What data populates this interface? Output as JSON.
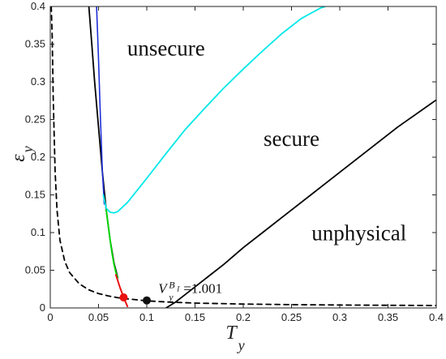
{
  "chart_data": {
    "type": "line",
    "title": "",
    "xlabel": "T",
    "xlabel_sub": "y",
    "ylabel": "ε",
    "ylabel_sub": "y",
    "xlim": [
      0,
      0.4
    ],
    "ylim": [
      0,
      0.4
    ],
    "xticks": [
      0,
      0.05,
      0.1,
      0.15,
      0.2,
      0.25,
      0.3,
      0.35,
      0.4
    ],
    "xtick_labels": [
      "0",
      "0.05",
      "0.1",
      "0.15",
      "0.2",
      "0.25",
      "0.3",
      "0.35",
      "0.4"
    ],
    "yticks": [
      0,
      0.05,
      0.1,
      0.15,
      0.2,
      0.25,
      0.3,
      0.35,
      0.4
    ],
    "ytick_labels": [
      "0",
      "0.05",
      "0.1",
      "0.15",
      "0.2",
      "0.25",
      "0.3",
      "0.35",
      "0.4"
    ],
    "grid": false,
    "regions": [
      {
        "label": "unsecure",
        "x": 0.12,
        "y": 0.335
      },
      {
        "label": "secure",
        "x": 0.25,
        "y": 0.215
      },
      {
        "label": "unphysical",
        "x": 0.32,
        "y": 0.09
      }
    ],
    "annotation": {
      "main": "V",
      "sup": "B",
      "sup_sub": "I",
      "sub": "y",
      "value": "=1.001",
      "x": 0.112,
      "y": 0.02
    },
    "series": [
      {
        "color": "#000000",
        "dash": "6,5",
        "width": 1.8,
        "x": [
          0.001,
          0.002,
          0.003,
          0.005,
          0.007,
          0.01,
          0.015,
          0.02,
          0.03,
          0.04,
          0.05,
          0.06,
          0.07,
          0.08,
          0.1,
          0.12,
          0.15,
          0.2,
          0.25,
          0.3,
          0.35,
          0.4
        ],
        "y": [
          0.4,
          0.36,
          0.28,
          0.18,
          0.13,
          0.09,
          0.062,
          0.047,
          0.032,
          0.024,
          0.019,
          0.016,
          0.0135,
          0.012,
          0.0095,
          0.008,
          0.0065,
          0.0052,
          0.0044,
          0.0039,
          0.0035,
          0.0032
        ]
      },
      {
        "color": "#000000",
        "width": 1.8,
        "x": [
          0.04,
          0.043,
          0.046,
          0.05,
          0.054,
          0.058,
          0.062,
          0.066,
          0.07
        ],
        "y": [
          0.4,
          0.35,
          0.3,
          0.24,
          0.18,
          0.13,
          0.09,
          0.06,
          0.04
        ]
      },
      {
        "color": "#000000",
        "width": 1.8,
        "x": [
          0.12,
          0.13,
          0.14,
          0.16,
          0.18,
          0.2,
          0.22,
          0.25,
          0.28,
          0.3,
          0.33,
          0.36,
          0.4
        ],
        "y": [
          0.0,
          0.008,
          0.018,
          0.038,
          0.058,
          0.08,
          0.1,
          0.13,
          0.16,
          0.18,
          0.21,
          0.24,
          0.276
        ]
      },
      {
        "color": "#1f2fd6",
        "width": 1.6,
        "x": [
          0.048,
          0.05,
          0.052,
          0.054,
          0.056
        ],
        "y": [
          0.4,
          0.33,
          0.25,
          0.18,
          0.138
        ]
      },
      {
        "color": "#00e8e8",
        "width": 1.8,
        "x": [
          0.055,
          0.058,
          0.062,
          0.066,
          0.07,
          0.08,
          0.09,
          0.1,
          0.12,
          0.14,
          0.16,
          0.18,
          0.2,
          0.22,
          0.24,
          0.26,
          0.28,
          0.285
        ],
        "y": [
          0.15,
          0.132,
          0.127,
          0.126,
          0.128,
          0.14,
          0.156,
          0.172,
          0.205,
          0.237,
          0.265,
          0.292,
          0.317,
          0.341,
          0.364,
          0.384,
          0.398,
          0.4
        ]
      },
      {
        "color": "#00dd00",
        "width": 1.8,
        "x": [
          0.058,
          0.06,
          0.062,
          0.064,
          0.066,
          0.068,
          0.07
        ],
        "y": [
          0.13,
          0.11,
          0.09,
          0.072,
          0.058,
          0.047,
          0.04
        ]
      },
      {
        "color": "#e81010",
        "width": 2.0,
        "x": [
          0.068,
          0.07,
          0.072,
          0.074,
          0.076,
          0.078,
          0.08
        ],
        "y": [
          0.044,
          0.036,
          0.028,
          0.021,
          0.014,
          0.008,
          0.002
        ]
      }
    ],
    "markers": [
      {
        "x": 0.076,
        "y": 0.014,
        "color": "#e81010"
      },
      {
        "x": 0.1,
        "y": 0.01,
        "color": "#111111"
      }
    ]
  }
}
